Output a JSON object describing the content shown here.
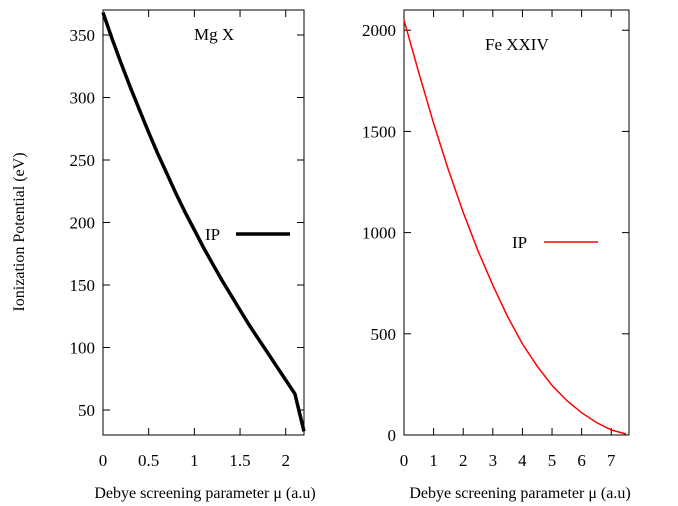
{
  "ylabel": "Ionization Potential (eV)",
  "chart_data": [
    {
      "type": "line",
      "annotation": "Mg X",
      "xlabel": "Debye screening parameter  μ (a.u)",
      "xlim": [
        0,
        2.2
      ],
      "ylim": [
        30,
        370
      ],
      "xticks": [
        0,
        0.5,
        1,
        1.5,
        2
      ],
      "xtick_labels": [
        "0",
        "0.5",
        "1",
        "1.5",
        "2"
      ],
      "yticks": [
        50,
        100,
        150,
        200,
        250,
        300,
        350
      ],
      "ytick_labels": [
        "50",
        "100",
        "150",
        "200",
        "250",
        "300",
        "350"
      ],
      "legend": "right-center",
      "series": [
        {
          "name": "IP",
          "color": "#000000",
          "x": [
            0,
            0.1,
            0.2,
            0.3,
            0.4,
            0.5,
            0.6,
            0.7,
            0.8,
            0.9,
            1.0,
            1.1,
            1.2,
            1.3,
            1.4,
            1.5,
            1.6,
            1.7,
            1.8,
            1.9,
            2.0,
            2.1,
            2.2
          ],
          "y": [
            368,
            347,
            327,
            308,
            290,
            272,
            255,
            239,
            223,
            208,
            194,
            180,
            167,
            154,
            142,
            130,
            118,
            107,
            96,
            85,
            74,
            63,
            33
          ]
        }
      ]
    },
    {
      "type": "line",
      "annotation": "Fe XXIV",
      "xlabel": "Debye screening parameter  μ (a.u)",
      "xlim": [
        0,
        7.6
      ],
      "ylim": [
        0,
        2100
      ],
      "xticks": [
        0,
        1,
        2,
        3,
        4,
        5,
        6,
        7
      ],
      "xtick_labels": [
        "0",
        "1",
        "2",
        "3",
        "4",
        "5",
        "6",
        "7"
      ],
      "yticks": [
        0,
        500,
        1000,
        1500,
        2000
      ],
      "ytick_labels": [
        "0",
        "500",
        "1000",
        "1500",
        "2000"
      ],
      "legend": "right-center",
      "series": [
        {
          "name": "IP",
          "color": "#ff0000",
          "x": [
            0,
            0.5,
            1,
            1.5,
            2,
            2.5,
            3,
            3.5,
            4,
            4.5,
            5,
            5.5,
            6,
            6.5,
            7,
            7.5
          ],
          "y": [
            2050,
            1790,
            1540,
            1310,
            1100,
            910,
            740,
            585,
            450,
            340,
            245,
            170,
            110,
            62,
            25,
            5
          ]
        }
      ]
    }
  ]
}
